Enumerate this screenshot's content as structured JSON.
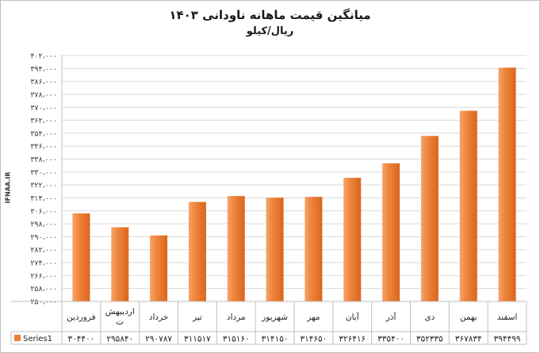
{
  "watermark": "IFNAA.IR",
  "chart_data": {
    "type": "bar",
    "title": "میانگین قیمت ماهانه ناودانی ۱۴۰۳",
    "subtitle": "ریال/کیلو",
    "categories": [
      "فروردین",
      "اردیبهشت",
      "خرداد",
      "تیر",
      "مرداد",
      "شهریور",
      "مهر",
      "آبان",
      "آذر",
      "دی",
      "بهمن",
      "اسفند"
    ],
    "category_lines": [
      [
        "فروردین"
      ],
      [
        "اردیبهش",
        "ت"
      ],
      [
        "خرداد"
      ],
      [
        "تیر"
      ],
      [
        "مرداد"
      ],
      [
        "شهریور"
      ],
      [
        "مهر"
      ],
      [
        "آبان"
      ],
      [
        "آذر"
      ],
      [
        "دی"
      ],
      [
        "بهمن"
      ],
      [
        "اسفند"
      ]
    ],
    "series": [
      {
        "name": "Series1",
        "values": [
          304400,
          295840,
          290787,
          311517,
          315160,
          314150,
          314650,
          326416,
          335400,
          352335,
          367834,
          394499
        ],
        "value_labels": [
          "۳۰۴۴۰۰",
          "۲۹۵۸۴۰",
          "۲۹۰۷۸۷",
          "۳۱۱۵۱۷",
          "۳۱۵۱۶۰",
          "۳۱۴۱۵۰",
          "۳۱۴۶۵۰",
          "۳۲۶۴۱۶",
          "۳۳۵۴۰۰",
          "۳۵۲۳۳۵",
          "۳۶۷۸۳۴",
          "۳۹۴۴۹۹"
        ]
      }
    ],
    "ylim": [
      250000,
      402000
    ],
    "yticks": [
      250000,
      258000,
      266000,
      274000,
      282000,
      290000,
      298000,
      306000,
      314000,
      322000,
      330000,
      338000,
      346000,
      354000,
      362000,
      370000,
      378000,
      386000,
      394000,
      402000
    ],
    "ytick_labels": [
      "۲۵۰،۰۰۰",
      "۲۵۸،۰۰۰",
      "۲۶۶،۰۰۰",
      "۲۷۴،۰۰۰",
      "۲۸۲،۰۰۰",
      "۲۹۰،۰۰۰",
      "۲۹۸،۰۰۰",
      "۳۰۶،۰۰۰",
      "۳۱۴،۰۰۰",
      "۳۲۲،۰۰۰",
      "۳۳۰،۰۰۰",
      "۳۳۸،۰۰۰",
      "۳۴۶،۰۰۰",
      "۳۵۴،۰۰۰",
      "۳۶۲،۰۰۰",
      "۳۷۰،۰۰۰",
      "۳۷۸،۰۰۰",
      "۳۸۶،۰۰۰",
      "۳۹۴،۰۰۰",
      "۴۰۲،۰۰۰"
    ],
    "grid": true,
    "legend": "data-table-left",
    "bar_color": "#ed7d31"
  }
}
